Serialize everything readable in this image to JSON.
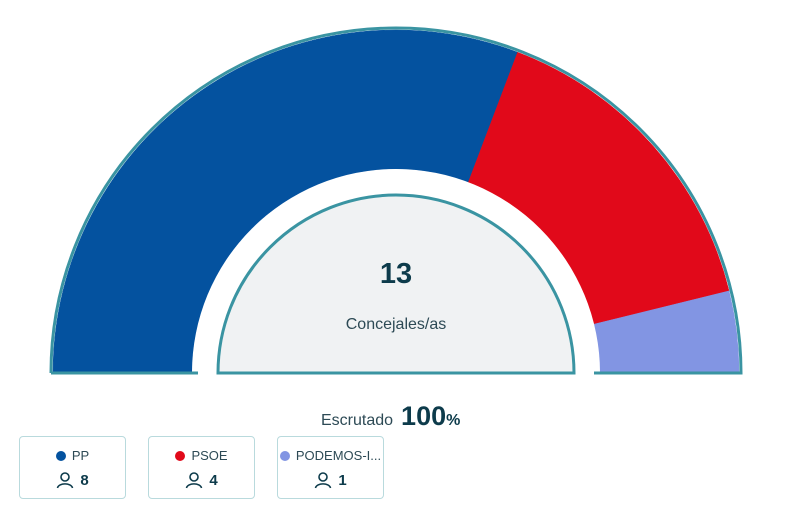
{
  "chart_data": {
    "type": "pie",
    "variant": "half-donut parliament",
    "center": {
      "value": "13",
      "label": "Concejales/as"
    },
    "series": [
      {
        "name": "PP",
        "seats": 8,
        "color": "#04529f"
      },
      {
        "name": "PSOE",
        "seats": 4,
        "color": "#e1091a"
      },
      {
        "name": "PODEMOS-I...",
        "seats": 1,
        "color": "#8295e3"
      }
    ],
    "outline_color": "#3a94a2",
    "center_fill": "#f0f2f3"
  },
  "scrutiny": {
    "label": "Escrutado",
    "value": "100",
    "unit": "%"
  },
  "legend": [
    {
      "name": "PP",
      "seats": "8",
      "color": "#04529f"
    },
    {
      "name": "PSOE",
      "seats": "4",
      "color": "#e1091a"
    },
    {
      "name": "PODEMOS-I...",
      "seats": "1",
      "color": "#8295e3"
    }
  ],
  "icons": {
    "seat": "person-icon"
  }
}
